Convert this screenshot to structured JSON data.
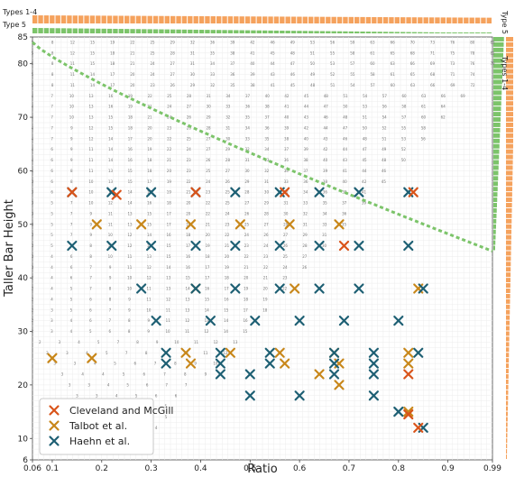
{
  "chart_data": {
    "type": "scatter",
    "xlabel": "Ratio",
    "ylabel": "Taller Bar Height",
    "xlim": [
      0.06,
      0.99
    ],
    "ylim": [
      6,
      85
    ],
    "x_ticks": [
      "0.06",
      "0.1",
      "0.2",
      "0.3",
      "0.4",
      "0.5",
      "0.6",
      "0.7",
      "0.8",
      "0.9",
      "0.99"
    ],
    "x_tick_values": [
      0.06,
      0.1,
      0.2,
      0.3,
      0.4,
      0.5,
      0.6,
      0.7,
      0.8,
      0.9,
      0.99
    ],
    "y_ticks": [
      "6",
      "10",
      "20",
      "30",
      "40",
      "50",
      "60",
      "70",
      "80",
      "85"
    ],
    "y_tick_values": [
      6,
      10,
      20,
      30,
      40,
      50,
      60,
      70,
      80,
      85
    ],
    "grid": true,
    "legend_position": "bottom-left",
    "side_panels": {
      "top": [
        "Types 1-4",
        "Type 5"
      ],
      "right": [
        "Type 5",
        "Types 1-4"
      ]
    },
    "colors": {
      "cleveland": "#d9541a",
      "talbot": "#c8871a",
      "haehn": "#1d5f73",
      "types_1_4": "#f5a25d",
      "type_5": "#7cc46a"
    },
    "series": [
      {
        "name": "Cleveland and McGill",
        "color": "#d9541a",
        "points": [
          [
            0.14,
            56
          ],
          [
            0.23,
            55.5
          ],
          [
            0.39,
            56
          ],
          [
            0.57,
            56
          ],
          [
            0.69,
            46
          ],
          [
            0.83,
            56
          ],
          [
            0.82,
            22
          ],
          [
            0.82,
            14.5
          ],
          [
            0.84,
            12
          ]
        ]
      },
      {
        "name": "Talbot et al.",
        "color": "#c8871a",
        "points": [
          [
            0.1,
            25
          ],
          [
            0.18,
            25
          ],
          [
            0.19,
            50
          ],
          [
            0.28,
            50
          ],
          [
            0.38,
            50
          ],
          [
            0.48,
            50
          ],
          [
            0.58,
            50
          ],
          [
            0.68,
            50
          ],
          [
            0.37,
            26
          ],
          [
            0.46,
            26
          ],
          [
            0.56,
            26
          ],
          [
            0.67,
            26
          ],
          [
            0.82,
            26
          ],
          [
            0.38,
            24
          ],
          [
            0.57,
            24
          ],
          [
            0.68,
            24
          ],
          [
            0.82,
            24
          ],
          [
            0.39,
            38
          ],
          [
            0.59,
            38
          ],
          [
            0.84,
            38
          ],
          [
            0.64,
            22
          ],
          [
            0.68,
            20
          ],
          [
            0.82,
            15
          ]
        ]
      },
      {
        "name": "Haehn et al.",
        "color": "#1d5f73",
        "points": [
          [
            0.14,
            56
          ],
          [
            0.22,
            56
          ],
          [
            0.3,
            56
          ],
          [
            0.39,
            56
          ],
          [
            0.47,
            56
          ],
          [
            0.56,
            56
          ],
          [
            0.64,
            56
          ],
          [
            0.72,
            56
          ],
          [
            0.82,
            56
          ],
          [
            0.14,
            46
          ],
          [
            0.22,
            46
          ],
          [
            0.3,
            46
          ],
          [
            0.39,
            46
          ],
          [
            0.47,
            46
          ],
          [
            0.56,
            46
          ],
          [
            0.64,
            46
          ],
          [
            0.72,
            46
          ],
          [
            0.82,
            46
          ],
          [
            0.28,
            38
          ],
          [
            0.39,
            38
          ],
          [
            0.47,
            38
          ],
          [
            0.56,
            38
          ],
          [
            0.64,
            38
          ],
          [
            0.72,
            38
          ],
          [
            0.85,
            38
          ],
          [
            0.31,
            32
          ],
          [
            0.42,
            32
          ],
          [
            0.51,
            32
          ],
          [
            0.6,
            32
          ],
          [
            0.69,
            32
          ],
          [
            0.8,
            32
          ],
          [
            0.33,
            26
          ],
          [
            0.44,
            26
          ],
          [
            0.54,
            26
          ],
          [
            0.67,
            26
          ],
          [
            0.75,
            26
          ],
          [
            0.84,
            26
          ],
          [
            0.33,
            24
          ],
          [
            0.44,
            24
          ],
          [
            0.54,
            24
          ],
          [
            0.67,
            24
          ],
          [
            0.75,
            24
          ],
          [
            0.44,
            22
          ],
          [
            0.5,
            22
          ],
          [
            0.67,
            22
          ],
          [
            0.75,
            22
          ],
          [
            0.5,
            18
          ],
          [
            0.6,
            18
          ],
          [
            0.75,
            18
          ],
          [
            0.8,
            15
          ],
          [
            0.85,
            12
          ]
        ]
      }
    ]
  }
}
